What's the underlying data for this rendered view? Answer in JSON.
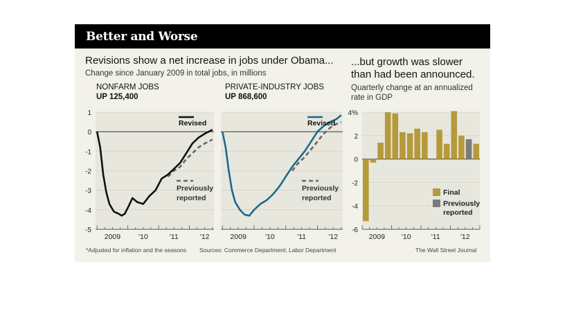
{
  "header": {
    "title": "Better and Worse"
  },
  "left_panel": {
    "headline": "Revisions show a net increase in jobs under Obama...",
    "subhead": "Change since January 2009 in total jobs, in millions",
    "nonfarm": {
      "title": "NONFARM JOBS",
      "subtitle": "UP 125,400"
    },
    "private": {
      "title": "PRIVATE-INDUSTRY JOBS",
      "subtitle": "UP 868,600"
    }
  },
  "right_panel": {
    "headline": "...but growth was slower\nthan had been announced.",
    "subhead": "Quarterly change at an annualized\nrate in GDP"
  },
  "footer": {
    "footnote": "*Adjusted for inflation and the seasons",
    "sources": "Sources: Commerce Department; Labor Department",
    "credit": "The Wall Street Journal"
  },
  "colors": {
    "revised_nonfarm": "#111111",
    "revised_private": "#1b6a8c",
    "previous": "#666666",
    "final_bar": "#b59a3c",
    "previous_bar": "#7b7b7b",
    "background": "#f2f2ea"
  },
  "chart_data": [
    {
      "type": "line",
      "panel": "nonfarm",
      "ylim": [
        -5,
        1
      ],
      "yticks": [
        "1",
        "0",
        "-1",
        "-2",
        "-3",
        "-4",
        "-5"
      ],
      "xticks": [
        "2009",
        "'10",
        "'11",
        "'12"
      ],
      "legend": {
        "revised": "Revised",
        "previous": "Previously reported"
      },
      "series": [
        {
          "name": "Revised",
          "points": [
            [
              2009.0,
              0
            ],
            [
              2009.1,
              -0.8
            ],
            [
              2009.2,
              -2.2
            ],
            [
              2009.3,
              -3.1
            ],
            [
              2009.4,
              -3.7
            ],
            [
              2009.55,
              -4.1
            ],
            [
              2009.7,
              -4.2
            ],
            [
              2009.8,
              -4.3
            ],
            [
              2009.9,
              -4.2
            ],
            [
              2010.0,
              -3.9
            ],
            [
              2010.15,
              -3.4
            ],
            [
              2010.3,
              -3.6
            ],
            [
              2010.5,
              -3.7
            ],
            [
              2010.7,
              -3.3
            ],
            [
              2010.9,
              -3.0
            ],
            [
              2011.1,
              -2.4
            ],
            [
              2011.3,
              -2.2
            ],
            [
              2011.5,
              -1.9
            ],
            [
              2011.7,
              -1.6
            ],
            [
              2011.9,
              -1.1
            ],
            [
              2012.1,
              -0.6
            ],
            [
              2012.3,
              -0.3
            ],
            [
              2012.5,
              -0.1
            ],
            [
              2012.75,
              0.1
            ]
          ]
        },
        {
          "name": "Previously reported",
          "points": [
            [
              2011.3,
              -2.3
            ],
            [
              2011.5,
              -2.0
            ],
            [
              2011.7,
              -1.8
            ],
            [
              2011.9,
              -1.4
            ],
            [
              2012.1,
              -1.1
            ],
            [
              2012.3,
              -0.8
            ],
            [
              2012.5,
              -0.6
            ],
            [
              2012.75,
              -0.4
            ]
          ]
        }
      ]
    },
    {
      "type": "line",
      "panel": "private",
      "ylim": [
        -5,
        1
      ],
      "xticks": [
        "2009",
        "'10",
        "'11",
        "'12"
      ],
      "legend": {
        "revised": "Revised",
        "previous": "Previously reported"
      },
      "series": [
        {
          "name": "Revised",
          "points": [
            [
              2009.0,
              0
            ],
            [
              2009.1,
              -0.8
            ],
            [
              2009.2,
              -2.0
            ],
            [
              2009.3,
              -3.0
            ],
            [
              2009.4,
              -3.6
            ],
            [
              2009.55,
              -4.0
            ],
            [
              2009.7,
              -4.25
            ],
            [
              2009.85,
              -4.3
            ],
            [
              2010.0,
              -4.0
            ],
            [
              2010.2,
              -3.7
            ],
            [
              2010.4,
              -3.5
            ],
            [
              2010.6,
              -3.2
            ],
            [
              2010.8,
              -2.8
            ],
            [
              2011.0,
              -2.3
            ],
            [
              2011.2,
              -1.8
            ],
            [
              2011.4,
              -1.4
            ],
            [
              2011.6,
              -1.0
            ],
            [
              2011.8,
              -0.5
            ],
            [
              2012.0,
              0.0
            ],
            [
              2012.2,
              0.3
            ],
            [
              2012.4,
              0.5
            ],
            [
              2012.6,
              0.65
            ],
            [
              2012.75,
              0.85
            ]
          ]
        },
        {
          "name": "Previously reported",
          "points": [
            [
              2011.2,
              -2.0
            ],
            [
              2011.4,
              -1.6
            ],
            [
              2011.6,
              -1.3
            ],
            [
              2011.8,
              -0.9
            ],
            [
              2012.0,
              -0.5
            ],
            [
              2012.2,
              -0.1
            ],
            [
              2012.4,
              0.2
            ],
            [
              2012.6,
              0.4
            ],
            [
              2012.75,
              0.5
            ]
          ]
        }
      ]
    },
    {
      "type": "bar",
      "panel": "gdp",
      "ylim": [
        -6,
        4
      ],
      "yticks": [
        "4%",
        "2",
        "0",
        "-2",
        "-4",
        "-6"
      ],
      "xticks": [
        "2009",
        "'10",
        "'11",
        "'12"
      ],
      "legend": {
        "final": "Final",
        "previous": "Previously reported"
      },
      "categories": [
        "2009Q1",
        "2009Q2",
        "2009Q3",
        "2009Q4",
        "2010Q1",
        "2010Q2",
        "2010Q3",
        "2010Q4",
        "2011Q1",
        "2011Q2",
        "2011Q3",
        "2011Q4",
        "2012Q1",
        "2012Q2",
        "2012Q3",
        "2012Q4"
      ],
      "series": [
        {
          "name": "Final",
          "values": [
            -5.3,
            -0.3,
            1.4,
            4.0,
            3.9,
            2.3,
            2.2,
            2.6,
            2.3,
            0,
            2.5,
            1.3,
            4.1,
            2.0,
            0,
            1.3
          ]
        },
        {
          "name": "Previously reported",
          "values": [
            0,
            0,
            0,
            0,
            0,
            0,
            0,
            0,
            0,
            0,
            0,
            0,
            0,
            0,
            1.7,
            0
          ]
        }
      ]
    }
  ]
}
